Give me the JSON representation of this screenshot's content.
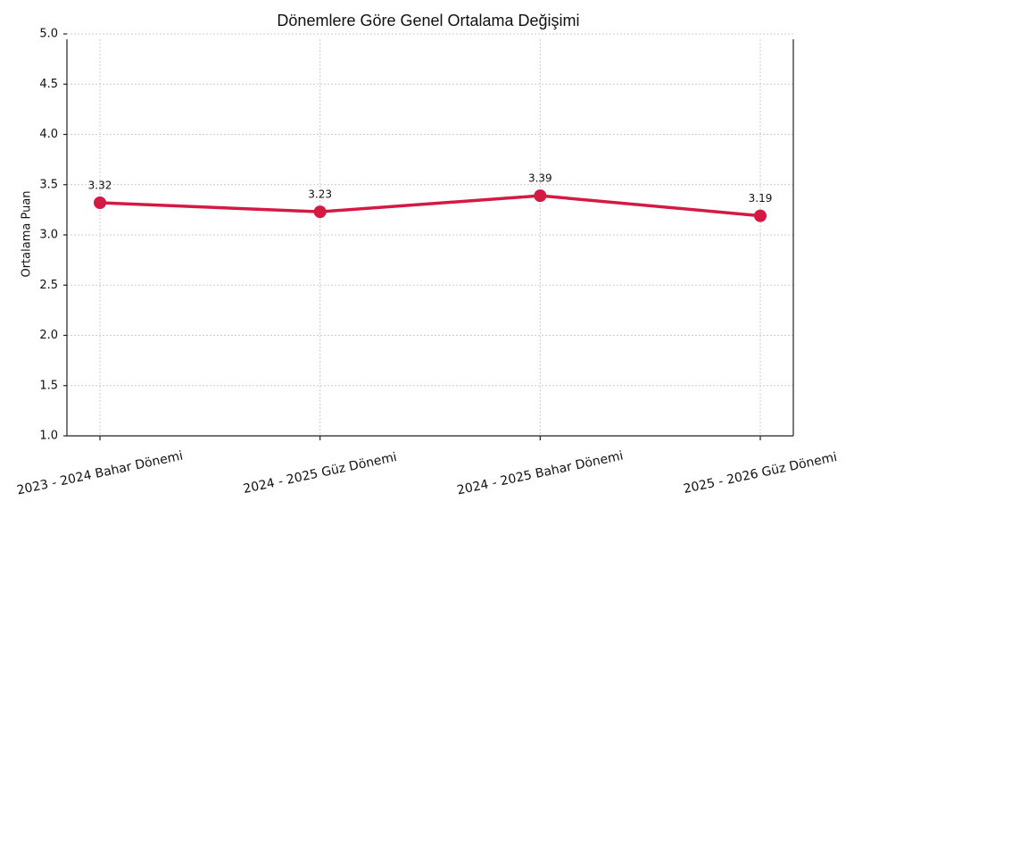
{
  "chart_data": {
    "type": "line",
    "title": "Dönemlere Göre Genel Ortalama Değişimi",
    "y_label": "Ortalama Puan",
    "categories": [
      "2023 - 2024 Bahar Dönemi",
      "2024 - 2025 Güz Dönemi",
      "2024 - 2025 Bahar Dönemi",
      "2025 - 2026 Güz Dönemi"
    ],
    "series": [
      {
        "name": "Ortalama Puan",
        "color": "#d41a42",
        "values": [
          3.32,
          3.23,
          3.39,
          3.19
        ]
      }
    ],
    "ylim": [
      1,
      5
    ],
    "yticks": [
      {
        "value": 1,
        "label": "1.0"
      },
      {
        "value": 1.5,
        "label": "1.5"
      },
      {
        "value": 2,
        "label": "2.0"
      },
      {
        "value": 2.5,
        "label": "2.5"
      },
      {
        "value": 3,
        "label": "3.0"
      },
      {
        "value": 3.5,
        "label": "3.5"
      },
      {
        "value": 4,
        "label": "4.0"
      },
      {
        "value": 4.5,
        "label": "4.5"
      },
      {
        "value": 5,
        "label": "5.0"
      }
    ],
    "grid": true
  }
}
